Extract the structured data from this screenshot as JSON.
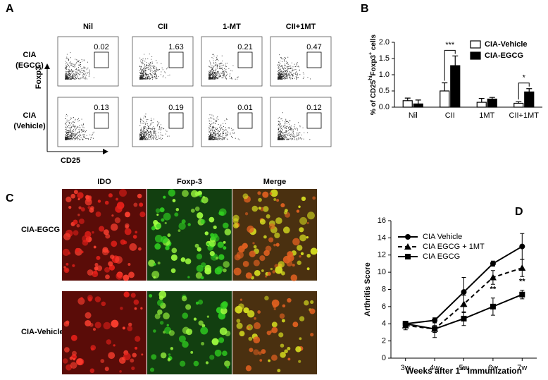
{
  "panel_a": {
    "label": "A",
    "columns": [
      "Nil",
      "CII",
      "1-MT",
      "CII+1MT"
    ],
    "rows": [
      {
        "label": [
          "CIA",
          "(EGCG)"
        ],
        "gates": [
          0.02,
          1.63,
          0.21,
          0.47
        ]
      },
      {
        "label": [
          "CIA",
          "(Vehicle)"
        ],
        "gates": [
          0.13,
          0.19,
          0.01,
          0.12
        ]
      }
    ],
    "y_axis": "Foxp3",
    "x_axis": "CD25"
  },
  "panel_c": {
    "label": "C",
    "columns": [
      "IDO",
      "Foxp-3",
      "Merge"
    ],
    "rows": [
      "CIA-EGCG",
      "CIA-Vehicle"
    ]
  },
  "chart_data": [
    {
      "type": "bar",
      "label": "B",
      "ylabel_parts": [
        "% of CD25",
        "hi",
        "Foxp3",
        "+",
        " cells"
      ],
      "categories": [
        "Nil",
        "CII",
        "1MT",
        "CII+1MT"
      ],
      "series": [
        {
          "name": "CIA-Vehicle",
          "color": "#ffffff",
          "values": [
            0.2,
            0.5,
            0.15,
            0.12
          ],
          "errors": [
            0.08,
            0.25,
            0.12,
            0.05
          ]
        },
        {
          "name": "CIA-EGCG",
          "color": "#000000",
          "values": [
            0.1,
            1.28,
            0.25,
            0.47
          ],
          "errors": [
            0.12,
            0.3,
            0.05,
            0.1
          ]
        }
      ],
      "ylim": [
        0,
        2
      ],
      "yticks": [
        {
          "value": 0,
          "label": "0.0"
        },
        0.5,
        {
          "value": 1,
          "label": "1.0"
        },
        1.5,
        {
          "value": 2,
          "label": "2.0"
        }
      ],
      "annotations": [
        "***",
        "*"
      ]
    },
    {
      "type": "line",
      "label": "D",
      "ylabel": "Arthritis Score",
      "xlabel_parts": [
        "Weeks after 1",
        "st",
        " Immunization"
      ],
      "categories": [
        "3w",
        "4w",
        "5w",
        "6w",
        "7w"
      ],
      "series": [
        {
          "name": "CIA Vehicle",
          "color": "#000000",
          "marker": "circle",
          "dashed": false,
          "values": [
            4.0,
            4.4,
            7.7,
            11.0,
            13.0
          ],
          "errors": [
            0.3,
            0.3,
            1.7,
            0.3,
            1.5
          ]
        },
        {
          "name": "CIA EGCG + 1MT",
          "color": "#000000",
          "marker": "triangle",
          "dashed": true,
          "values": [
            3.8,
            3.4,
            6.3,
            9.4,
            10.5
          ],
          "errors": [
            0.5,
            0.4,
            1.0,
            0.8,
            1.0
          ]
        },
        {
          "name": "CIA EGCG",
          "color": "#000000",
          "marker": "square",
          "dashed": false,
          "values": [
            4.0,
            3.4,
            4.6,
            6.0,
            7.4
          ],
          "errors": [
            0.3,
            1.0,
            0.8,
            1.0,
            0.5
          ]
        }
      ],
      "ylim": [
        0,
        16
      ],
      "yticks": [
        0,
        2,
        4,
        6,
        8,
        10,
        12,
        14,
        16
      ],
      "annotations": [
        "**",
        "**"
      ]
    }
  ]
}
